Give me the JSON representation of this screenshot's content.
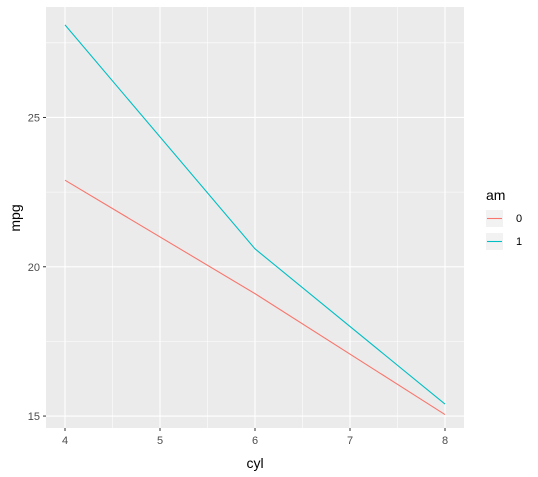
{
  "chart_data": {
    "type": "line",
    "xlabel": "cyl",
    "ylabel": "mpg",
    "xlim": [
      3.8,
      8.2
    ],
    "ylim": [
      14.6,
      28.7
    ],
    "x_ticks": [
      4,
      5,
      6,
      7,
      8
    ],
    "y_ticks": [
      15,
      20,
      25
    ],
    "x_tick_labels": [
      "4",
      "5",
      "6",
      "7",
      "8"
    ],
    "y_tick_labels": [
      "15",
      "20",
      "25"
    ],
    "grid": true,
    "legend": {
      "title": "am",
      "placement": "right"
    },
    "series": [
      {
        "name": "0",
        "color": "#F8766D",
        "x": [
          4,
          6,
          8
        ],
        "y": [
          22.9,
          19.1,
          15.05
        ]
      },
      {
        "name": "1",
        "color": "#00BFC4",
        "x": [
          4,
          6,
          8
        ],
        "y": [
          28.1,
          20.6,
          15.4
        ]
      }
    ]
  }
}
